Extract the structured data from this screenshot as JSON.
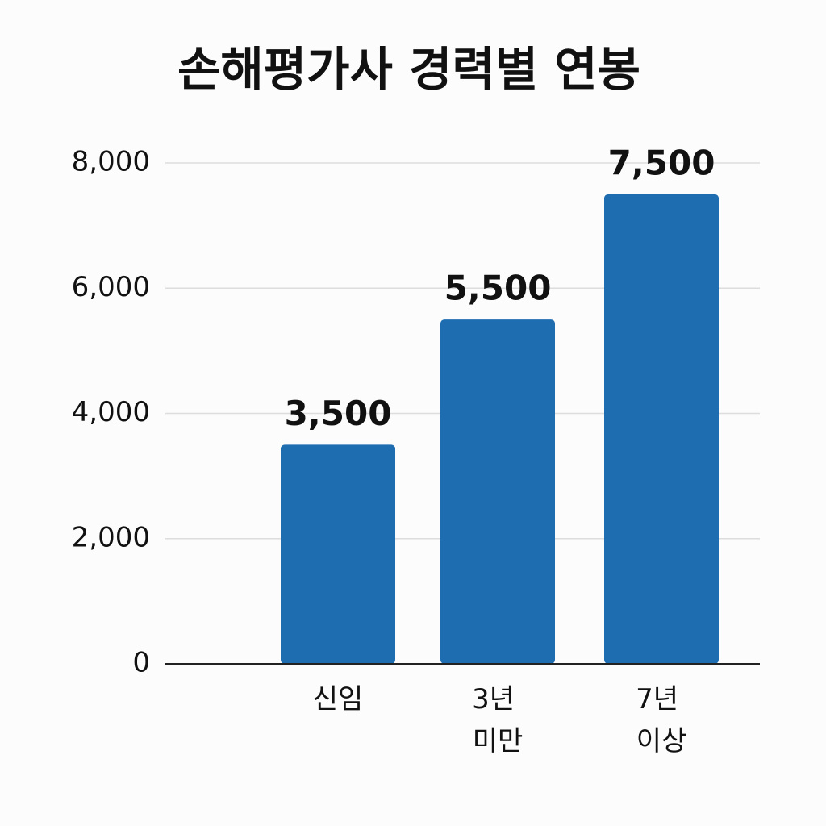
{
  "chart_data": {
    "type": "bar",
    "title": "손해평가사 경력별 연봉",
    "categories": [
      "신임",
      "3년 미만",
      "7년 이상"
    ],
    "values": [
      3500,
      5500,
      7500
    ],
    "value_labels": [
      "3,500",
      "5,500",
      "7,500"
    ],
    "color": "#1f6db1",
    "ylim": [
      0,
      8000
    ],
    "yticks": [
      0,
      {
        "value": 2000,
        "label": "2,000"
      },
      {
        "value": 4000,
        "label": "4,000"
      },
      {
        "value": 6000,
        "label": "6,000"
      },
      {
        "value": 8000,
        "label": "8,000"
      }
    ],
    "grid": true
  }
}
